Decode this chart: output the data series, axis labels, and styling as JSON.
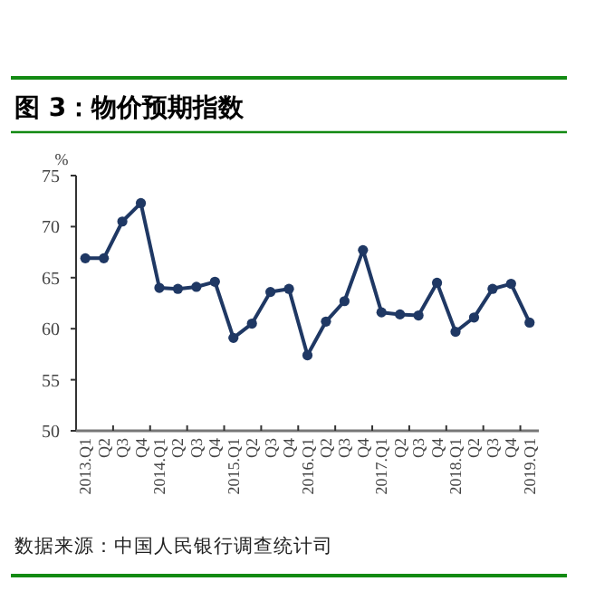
{
  "chart_data": {
    "type": "line",
    "title": "图 3：物价预期指数",
    "ylabel": "%",
    "categories": [
      "2013.Q1",
      "Q2",
      "Q3",
      "Q4",
      "2014.Q1",
      "Q2",
      "Q3",
      "Q4",
      "2015.Q1",
      "Q2",
      "Q3",
      "Q4",
      "2016.Q1",
      "Q2",
      "Q3",
      "Q4",
      "2017.Q1",
      "Q2",
      "Q3",
      "Q4",
      "2018.Q1",
      "Q2",
      "Q3",
      "Q4",
      "2019.Q1"
    ],
    "series": [
      {
        "color": "#1f3864",
        "values": [
          66.9,
          66.9,
          70.5,
          72.3,
          64.0,
          63.9,
          64.1,
          64.6,
          59.1,
          60.5,
          63.6,
          63.9,
          57.4,
          60.7,
          62.7,
          67.7,
          61.6,
          61.4,
          61.3,
          64.5,
          59.7,
          61.1,
          63.9,
          64.4,
          60.6
        ]
      }
    ],
    "ylim": [
      50,
      75
    ],
    "yticks": [
      50,
      55,
      60,
      65,
      70,
      75
    ],
    "grid": false,
    "marker": "circle",
    "line_style": "solid",
    "annotations": [
      "数据来源：中国人民银行调查统计司"
    ]
  }
}
